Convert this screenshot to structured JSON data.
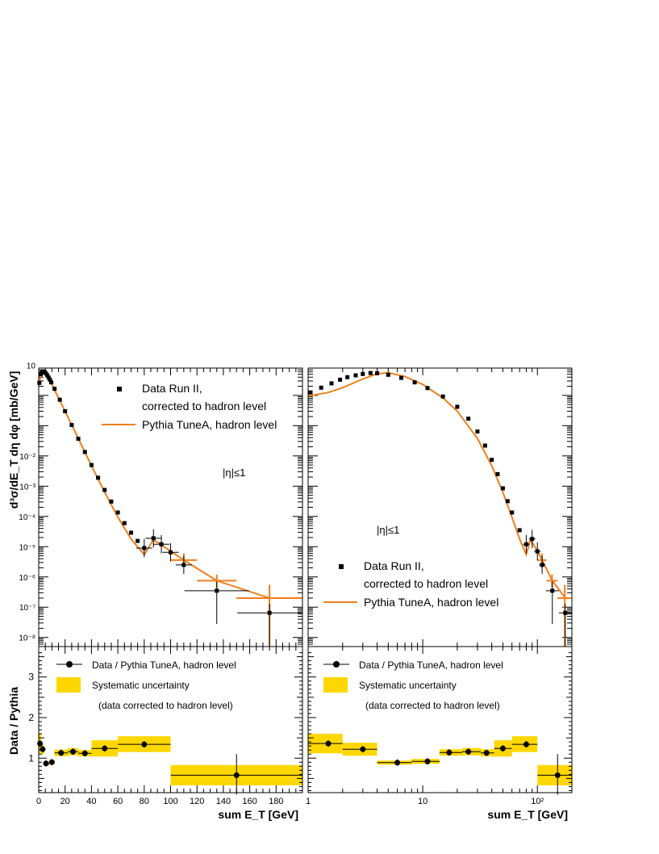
{
  "colors": {
    "data": "#000000",
    "model": "#f07f1e",
    "band": "#ffd700",
    "frame": "#000000"
  },
  "chart_data": [
    {
      "id": "left-main",
      "type": "scatter",
      "xscale": "linear",
      "yscale": "log",
      "xlim": [
        0,
        200
      ],
      "ylim": [
        5e-09,
        8
      ],
      "xticks": [
        0,
        20,
        40,
        60,
        80,
        100,
        120,
        140,
        160,
        180
      ],
      "yticks": [
        {
          "v": 10,
          "l": "10"
        },
        {
          "v": 0.01,
          "l": "10⁻²"
        },
        {
          "v": 0.001,
          "l": "10⁻³"
        },
        {
          "v": 0.0001,
          "l": "10⁻⁴"
        },
        {
          "v": 1e-05,
          "l": "10⁻⁵"
        },
        {
          "v": 1e-06,
          "l": "10⁻⁶"
        },
        {
          "v": 1e-07,
          "l": "10⁻⁷"
        },
        {
          "v": 1e-08,
          "l": "10⁻⁸"
        }
      ],
      "ylabel": "d³σ/dE_T dη dφ  [mb/GeV]",
      "annotation": "|η|≤1",
      "legend": {
        "placement": "top-right",
        "data": "Data Run II,",
        "data2": "corrected to hadron level",
        "model": "Pythia TuneA, hadron level"
      },
      "series": [
        {
          "name": "Data Run II,",
          "marker": "square",
          "points": [
            [
              0.5,
              2.6
            ],
            [
              1.5,
              5.0
            ],
            [
              2.5,
              6.0
            ],
            [
              3.5,
              6.2
            ],
            [
              4.5,
              5.9
            ],
            [
              5.5,
              5.3
            ],
            [
              6.5,
              4.6
            ],
            [
              7.5,
              3.9
            ],
            [
              8.5,
              3.3
            ],
            [
              9.5,
              2.7
            ],
            [
              12,
              1.65
            ],
            [
              16,
              0.72
            ],
            [
              20,
              0.3
            ],
            [
              25,
              0.105
            ],
            [
              30,
              0.037
            ],
            [
              35,
              0.0135
            ],
            [
              40,
              0.005
            ],
            [
              45,
              0.0019
            ],
            [
              50,
              0.00075
            ],
            [
              55,
              0.00031
            ],
            [
              60,
              0.000135
            ],
            [
              65,
              6e-05
            ],
            [
              70,
              2.9e-05
            ],
            [
              75,
              1.55e-05
            ],
            [
              80,
              9e-06
            ],
            [
              87,
              1.9e-05
            ],
            [
              93,
              1.2e-05
            ],
            [
              100,
              6.5e-06
            ],
            [
              110,
              2.5e-06
            ],
            [
              135,
              3.5e-07
            ],
            [
              175,
              6.5e-08
            ]
          ]
        },
        {
          "name": "Pythia TuneA, hadron level",
          "line": [
            [
              0,
              2.2
            ],
            [
              2,
              5.2
            ],
            [
              4,
              6.5
            ],
            [
              6,
              5.3
            ],
            [
              8,
              3.6
            ],
            [
              10,
              2.3
            ],
            [
              15,
              0.83
            ],
            [
              20,
              0.3
            ],
            [
              30,
              0.038
            ],
            [
              40,
              0.0047
            ],
            [
              50,
              0.00063
            ],
            [
              60,
              9.5e-05
            ],
            [
              70,
              1.8e-05
            ],
            [
              80,
              5.5e-06
            ],
            [
              87,
              1.7e-05
            ],
            [
              95,
              1e-05
            ],
            [
              110,
              3.6e-06
            ],
            [
              135,
              7.5e-07
            ],
            [
              175,
              2e-07
            ],
            [
              200,
              2e-07
            ]
          ]
        }
      ]
    },
    {
      "id": "right-main",
      "type": "scatter",
      "xscale": "log",
      "yscale": "log",
      "xlim": [
        1,
        200
      ],
      "ylim": [
        5e-09,
        8
      ],
      "xticks": [
        {
          "v": 1,
          "l": "1"
        },
        {
          "v": 10,
          "l": "10"
        },
        {
          "v": 100,
          "l": "10²"
        }
      ],
      "annotation": "|η|≤1",
      "legend": {
        "placement": "bottom-right",
        "data": "Data Run II,",
        "data2": "corrected to hadron level",
        "model": "Pythia TuneA, hadron level"
      },
      "series": [
        {
          "name": "Data Run II,",
          "marker": "square",
          "points": [
            [
              1.05,
              1.25
            ],
            [
              1.3,
              1.8
            ],
            [
              1.6,
              2.5
            ],
            [
              1.9,
              3.3
            ],
            [
              2.2,
              4.0
            ],
            [
              2.6,
              4.6
            ],
            [
              3.0,
              5.1
            ],
            [
              3.5,
              5.5
            ],
            [
              4.0,
              5.4
            ],
            [
              5.0,
              4.8
            ],
            [
              6.5,
              3.8
            ],
            [
              8.5,
              2.7
            ],
            [
              11,
              1.75
            ],
            [
              15,
              0.92
            ],
            [
              20,
              0.42
            ],
            [
              25,
              0.17
            ],
            [
              30,
              0.064
            ],
            [
              35,
              0.022
            ],
            [
              40,
              0.0074
            ],
            [
              45,
              0.0025
            ],
            [
              50,
              0.00085
            ],
            [
              55,
              0.00032
            ],
            [
              60,
              0.000135
            ],
            [
              70,
              3.5e-05
            ],
            [
              80,
              1.2e-05
            ],
            [
              90,
              1.8e-05
            ],
            [
              100,
              7e-06
            ],
            [
              110,
              2.5e-06
            ],
            [
              135,
              3.5e-07
            ],
            [
              175,
              6.5e-08
            ]
          ]
        },
        {
          "name": "Pythia TuneA, hadron level",
          "line": [
            [
              1,
              0.95
            ],
            [
              1.5,
              1.25
            ],
            [
              2,
              1.8
            ],
            [
              3,
              3.5
            ],
            [
              4,
              5.2
            ],
            [
              5,
              5.6
            ],
            [
              7,
              4.2
            ],
            [
              10,
              2.3
            ],
            [
              15,
              0.83
            ],
            [
              20,
              0.3
            ],
            [
              30,
              0.038
            ],
            [
              40,
              0.0047
            ],
            [
              50,
              0.00063
            ],
            [
              60,
              9.5e-05
            ],
            [
              70,
              1.8e-05
            ],
            [
              80,
              5.5e-06
            ],
            [
              87,
              1.7e-05
            ],
            [
              95,
              1e-05
            ],
            [
              110,
              3.6e-06
            ],
            [
              135,
              7.5e-07
            ],
            [
              175,
              2e-07
            ],
            [
              200,
              2e-07
            ]
          ]
        }
      ]
    },
    {
      "id": "left-ratio",
      "type": "scatter",
      "xscale": "linear",
      "yscale": "linear",
      "xlim": [
        0,
        200
      ],
      "ylim": [
        0.15,
        3.75
      ],
      "xticks": [
        0,
        20,
        40,
        60,
        80,
        100,
        120,
        140,
        160,
        180
      ],
      "yticks": [
        1,
        2,
        3
      ],
      "xlabel": "sum E_T  [GeV]",
      "ylabel": "Data / Pythia",
      "legend": {
        "placement": "top",
        "ratio": "Data / Pythia TuneA, hadron level",
        "band": "Systematic uncertainty",
        "note": "(data corrected to hadron level)"
      },
      "series": [
        {
          "name": "Data / Pythia TuneA, hadron level",
          "points": [
            {
              "x": 1,
              "x0": 0,
              "x1": 2,
              "y": 1.36,
              "band": [
                1.12,
                1.62
              ]
            },
            {
              "x": 3,
              "x0": 2,
              "x1": 4,
              "y": 1.22,
              "band": [
                1.1,
                1.34
              ]
            },
            {
              "x": 5.5,
              "x0": 4,
              "x1": 8,
              "y": 0.87,
              "band": [
                0.82,
                0.92
              ]
            },
            {
              "x": 10,
              "x0": 8,
              "x1": 12,
              "y": 0.9,
              "band": [
                0.85,
                0.95
              ]
            },
            {
              "x": 17,
              "x0": 12,
              "x1": 22,
              "y": 1.13,
              "band": [
                1.05,
                1.21
              ]
            },
            {
              "x": 26,
              "x0": 22,
              "x1": 30,
              "y": 1.16,
              "band": [
                1.07,
                1.25
              ]
            },
            {
              "x": 35,
              "x0": 30,
              "x1": 40,
              "y": 1.12,
              "band": [
                1.04,
                1.2
              ]
            },
            {
              "x": 50,
              "x0": 40,
              "x1": 60,
              "y": 1.24,
              "band": [
                1.04,
                1.44
              ]
            },
            {
              "x": 80,
              "x0": 60,
              "x1": 100,
              "y": 1.34,
              "band": [
                1.15,
                1.54
              ]
            },
            {
              "x": 150,
              "x0": 100,
              "x1": 200,
              "y": 0.58,
              "band": [
                0.33,
                0.83
              ],
              "err": [
                0.1,
                1.1
              ]
            }
          ]
        }
      ]
    },
    {
      "id": "right-ratio",
      "type": "scatter",
      "xscale": "log",
      "yscale": "linear",
      "xlim": [
        1,
        200
      ],
      "ylim": [
        0.15,
        3.75
      ],
      "xticks": [
        {
          "v": 1,
          "l": "1"
        },
        {
          "v": 10,
          "l": "10"
        },
        {
          "v": 100,
          "l": "10²"
        }
      ],
      "xlabel": "sum E_T  [GeV]",
      "legend": {
        "placement": "top",
        "ratio": "Data / Pythia TuneA, hadron level",
        "band": "Systematic uncertainty",
        "note": "(data corrected to hadron level)"
      },
      "series": [
        {
          "name": "Data / Pythia TuneA, hadron level",
          "points": [
            {
              "x": 1.5,
              "x0": 1,
              "x1": 2,
              "y": 1.36,
              "band": [
                1.12,
                1.6
              ]
            },
            {
              "x": 3,
              "x0": 2,
              "x1": 4,
              "y": 1.22,
              "band": [
                1.06,
                1.38
              ]
            },
            {
              "x": 6,
              "x0": 4,
              "x1": 8,
              "y": 0.89,
              "band": [
                0.84,
                0.94
              ]
            },
            {
              "x": 11,
              "x0": 8,
              "x1": 14,
              "y": 0.92,
              "band": [
                0.86,
                0.98
              ]
            },
            {
              "x": 17,
              "x0": 14,
              "x1": 22,
              "y": 1.14,
              "band": [
                1.06,
                1.22
              ]
            },
            {
              "x": 25,
              "x0": 22,
              "x1": 32,
              "y": 1.16,
              "band": [
                1.07,
                1.25
              ]
            },
            {
              "x": 36,
              "x0": 32,
              "x1": 42,
              "y": 1.13,
              "band": [
                1.04,
                1.22
              ]
            },
            {
              "x": 50,
              "x0": 42,
              "x1": 60,
              "y": 1.24,
              "band": [
                1.04,
                1.44
              ]
            },
            {
              "x": 80,
              "x0": 60,
              "x1": 100,
              "y": 1.34,
              "band": [
                1.15,
                1.54
              ]
            },
            {
              "x": 150,
              "x0": 100,
              "x1": 200,
              "y": 0.58,
              "band": [
                0.33,
                0.83
              ],
              "err": [
                0.1,
                1.1
              ]
            }
          ]
        }
      ]
    }
  ]
}
